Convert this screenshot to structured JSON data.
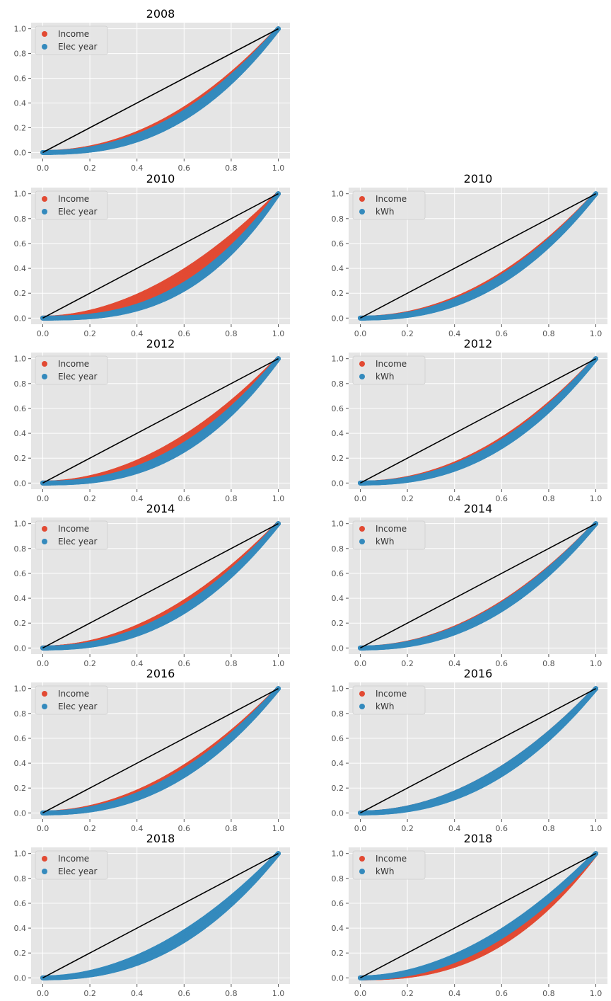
{
  "chart_data": [
    {
      "type": "scatter",
      "title": "2008",
      "xlim": [
        0,
        1
      ],
      "ylim": [
        0,
        1
      ],
      "xticks": [
        "0.0",
        "0.2",
        "0.4",
        "0.6",
        "0.8",
        "1.0"
      ],
      "yticks": [
        "0.0",
        "0.2",
        "0.4",
        "0.6",
        "0.8",
        "1.0"
      ],
      "grid": true,
      "legend_position": "top-left",
      "reference_line": {
        "x": [
          0,
          1
        ],
        "y": [
          0,
          1
        ],
        "color": "#000000"
      },
      "series": [
        {
          "name": "Income",
          "color": "#E24A33",
          "lorenz_exponent": [
            2.05,
            2.05
          ]
        },
        {
          "name": "Elec year",
          "color": "#348ABD",
          "lorenz_exponent": [
            2.2,
            2.5
          ]
        }
      ]
    },
    {
      "type": "scatter",
      "title": "2010",
      "xlim": [
        0,
        1
      ],
      "ylim": [
        0,
        1
      ],
      "xticks": [
        "0.0",
        "0.2",
        "0.4",
        "0.6",
        "0.8",
        "1.0"
      ],
      "yticks": [
        "0.0",
        "0.2",
        "0.4",
        "0.6",
        "0.8",
        "1.0"
      ],
      "grid": true,
      "legend_position": "top-left",
      "reference_line": {
        "x": [
          0,
          1
        ],
        "y": [
          0,
          1
        ],
        "color": "#000000"
      },
      "series": [
        {
          "name": "Income",
          "color": "#E24A33",
          "lorenz_exponent": [
            1.9,
            2.35
          ]
        },
        {
          "name": "Elec year",
          "color": "#348ABD",
          "lorenz_exponent": [
            2.55,
            2.85
          ]
        }
      ]
    },
    {
      "type": "scatter",
      "title": "2010",
      "xlim": [
        0,
        1
      ],
      "ylim": [
        0,
        1
      ],
      "xticks": [
        "0.0",
        "0.2",
        "0.4",
        "0.6",
        "0.8",
        "1.0"
      ],
      "yticks": [
        "0.0",
        "0.2",
        "0.4",
        "0.6",
        "0.8",
        "1.0"
      ],
      "grid": true,
      "legend_position": "top-left",
      "reference_line": {
        "x": [
          0,
          1
        ],
        "y": [
          0,
          1
        ],
        "color": "#000000"
      },
      "series": [
        {
          "name": "Income",
          "color": "#E24A33",
          "lorenz_exponent": [
            2.05,
            2.05
          ]
        },
        {
          "name": "kWh",
          "color": "#348ABD",
          "lorenz_exponent": [
            2.15,
            2.4
          ]
        }
      ]
    },
    {
      "type": "scatter",
      "title": "2012",
      "xlim": [
        0,
        1
      ],
      "ylim": [
        0,
        1
      ],
      "xticks": [
        "0.0",
        "0.2",
        "0.4",
        "0.6",
        "0.8",
        "1.0"
      ],
      "yticks": [
        "0.0",
        "0.2",
        "0.4",
        "0.6",
        "0.8",
        "1.0"
      ],
      "grid": true,
      "legend_position": "top-left",
      "reference_line": {
        "x": [
          0,
          1
        ],
        "y": [
          0,
          1
        ],
        "color": "#000000"
      },
      "series": [
        {
          "name": "Income",
          "color": "#E24A33",
          "lorenz_exponent": [
            1.95,
            2.2
          ]
        },
        {
          "name": "Elec year",
          "color": "#348ABD",
          "lorenz_exponent": [
            2.3,
            2.6
          ]
        }
      ]
    },
    {
      "type": "scatter",
      "title": "2012",
      "xlim": [
        0,
        1
      ],
      "ylim": [
        0,
        1
      ],
      "xticks": [
        "0.0",
        "0.2",
        "0.4",
        "0.6",
        "0.8",
        "1.0"
      ],
      "yticks": [
        "0.0",
        "0.2",
        "0.4",
        "0.6",
        "0.8",
        "1.0"
      ],
      "grid": true,
      "legend_position": "top-left",
      "reference_line": {
        "x": [
          0,
          1
        ],
        "y": [
          0,
          1
        ],
        "color": "#000000"
      },
      "series": [
        {
          "name": "Income",
          "color": "#E24A33",
          "lorenz_exponent": [
            2.05,
            2.05
          ]
        },
        {
          "name": "kWh",
          "color": "#348ABD",
          "lorenz_exponent": [
            2.15,
            2.4
          ]
        }
      ]
    },
    {
      "type": "scatter",
      "title": "2014",
      "xlim": [
        0,
        1
      ],
      "ylim": [
        0,
        1
      ],
      "xticks": [
        "0.0",
        "0.2",
        "0.4",
        "0.6",
        "0.8",
        "1.0"
      ],
      "yticks": [
        "0.0",
        "0.2",
        "0.4",
        "0.6",
        "0.8",
        "1.0"
      ],
      "grid": true,
      "legend_position": "top-left",
      "reference_line": {
        "x": [
          0,
          1
        ],
        "y": [
          0,
          1
        ],
        "color": "#000000"
      },
      "series": [
        {
          "name": "Income",
          "color": "#E24A33",
          "lorenz_exponent": [
            1.95,
            2.0
          ]
        },
        {
          "name": "Elec year",
          "color": "#348ABD",
          "lorenz_exponent": [
            2.15,
            2.4
          ]
        }
      ]
    },
    {
      "type": "scatter",
      "title": "2014",
      "xlim": [
        0,
        1
      ],
      "ylim": [
        0,
        1
      ],
      "xticks": [
        "0.0",
        "0.2",
        "0.4",
        "0.6",
        "0.8",
        "1.0"
      ],
      "yticks": [
        "0.0",
        "0.2",
        "0.4",
        "0.6",
        "0.8",
        "1.0"
      ],
      "grid": true,
      "legend_position": "top-left",
      "reference_line": {
        "x": [
          0,
          1
        ],
        "y": [
          0,
          1
        ],
        "color": "#000000"
      },
      "series": [
        {
          "name": "Income",
          "color": "#E24A33",
          "lorenz_exponent": [
            2.0,
            2.0
          ]
        },
        {
          "name": "kWh",
          "color": "#348ABD",
          "lorenz_exponent": [
            2.05,
            2.3
          ]
        }
      ]
    },
    {
      "type": "scatter",
      "title": "2016",
      "xlim": [
        0,
        1
      ],
      "ylim": [
        0,
        1
      ],
      "xticks": [
        "0.0",
        "0.2",
        "0.4",
        "0.6",
        "0.8",
        "1.0"
      ],
      "yticks": [
        "0.0",
        "0.2",
        "0.4",
        "0.6",
        "0.8",
        "1.0"
      ],
      "grid": true,
      "legend_position": "top-left",
      "reference_line": {
        "x": [
          0,
          1
        ],
        "y": [
          0,
          1
        ],
        "color": "#000000"
      },
      "series": [
        {
          "name": "Income",
          "color": "#E24A33",
          "lorenz_exponent": [
            1.95,
            1.95
          ]
        },
        {
          "name": "Elec year",
          "color": "#348ABD",
          "lorenz_exponent": [
            2.1,
            2.35
          ]
        }
      ]
    },
    {
      "type": "scatter",
      "title": "2016",
      "xlim": [
        0,
        1
      ],
      "ylim": [
        0,
        1
      ],
      "xticks": [
        "0.0",
        "0.2",
        "0.4",
        "0.6",
        "0.8",
        "1.0"
      ],
      "yticks": [
        "0.0",
        "0.2",
        "0.4",
        "0.6",
        "0.8",
        "1.0"
      ],
      "grid": true,
      "legend_position": "top-left",
      "reference_line": {
        "x": [
          0,
          1
        ],
        "y": [
          0,
          1
        ],
        "color": "#000000"
      },
      "series": [
        {
          "name": "Income",
          "color": "#E24A33",
          "lorenz_exponent": [
            2.0,
            2.0
          ]
        },
        {
          "name": "kWh",
          "color": "#348ABD",
          "lorenz_exponent": [
            2.0,
            2.3
          ]
        }
      ]
    },
    {
      "type": "scatter",
      "title": "2018",
      "xlim": [
        0,
        1
      ],
      "ylim": [
        0,
        1
      ],
      "xticks": [
        "0.0",
        "0.2",
        "0.4",
        "0.6",
        "0.8",
        "1.0"
      ],
      "yticks": [
        "0.0",
        "0.2",
        "0.4",
        "0.6",
        "0.8",
        "1.0"
      ],
      "grid": true,
      "legend_position": "top-left",
      "reference_line": {
        "x": [
          0,
          1
        ],
        "y": [
          0,
          1
        ],
        "color": "#000000"
      },
      "series": [
        {
          "name": "Income",
          "color": "#E24A33",
          "lorenz_exponent": [
            2.2,
            2.2
          ]
        },
        {
          "name": "Elec year",
          "color": "#348ABD",
          "lorenz_exponent": [
            1.95,
            2.35
          ]
        }
      ]
    },
    {
      "type": "scatter",
      "title": "2018",
      "xlim": [
        0,
        1
      ],
      "ylim": [
        0,
        1
      ],
      "xticks": [
        "0.0",
        "0.2",
        "0.4",
        "0.6",
        "0.8",
        "1.0"
      ],
      "yticks": [
        "0.0",
        "0.2",
        "0.4",
        "0.6",
        "0.8",
        "1.0"
      ],
      "grid": true,
      "legend_position": "top-left",
      "reference_line": {
        "x": [
          0,
          1
        ],
        "y": [
          0,
          1
        ],
        "color": "#000000"
      },
      "series": [
        {
          "name": "Income",
          "color": "#E24A33",
          "lorenz_exponent": [
            2.3,
            2.5
          ]
        },
        {
          "name": "kWh",
          "color": "#348ABD",
          "lorenz_exponent": [
            1.9,
            2.15
          ]
        }
      ]
    }
  ]
}
